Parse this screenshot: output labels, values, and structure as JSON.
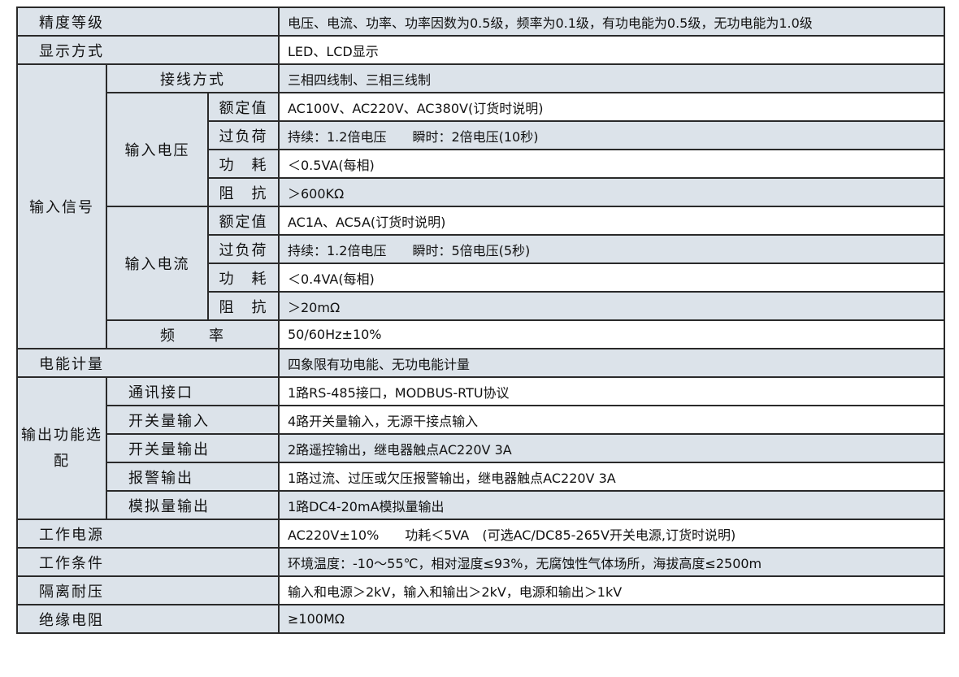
{
  "colors": {
    "label_bg": "#dce3ea",
    "border": "#2a2a2a"
  },
  "rows": {
    "accuracy": {
      "label": "精度等级",
      "value": "电压、电流、功率、功率因数为0.5级，频率为0.1级，有功电能为0.5级，无功电能为1.0级"
    },
    "display": {
      "label": "显示方式",
      "value": "LED、LCD显示"
    },
    "input": {
      "label": "输入信号",
      "wiring": {
        "label": "接线方式",
        "value": "三相四线制、三相三线制"
      },
      "voltage": {
        "label": "输入电压",
        "rated": {
          "label": "额定值",
          "value": "AC100V、AC220V、AC380V(订货时说明)"
        },
        "overload": {
          "label": "过负荷",
          "value": "持续：1.2倍电压　　瞬时：2倍电压(10秒)"
        },
        "power": {
          "label": "功　耗",
          "value": "＜0.5VA(每相)"
        },
        "impedance": {
          "label": "阻　抗",
          "value": "＞600KΩ"
        }
      },
      "current": {
        "label": "输入电流",
        "rated": {
          "label": "额定值",
          "value": "AC1A、AC5A(订货时说明)"
        },
        "overload": {
          "label": "过负荷",
          "value": "持续：1.2倍电压　　瞬时：5倍电压(5秒)"
        },
        "power": {
          "label": "功　耗",
          "value": "＜0.4VA(每相)"
        },
        "impedance": {
          "label": "阻　抗",
          "value": "＞20mΩ"
        }
      },
      "frequency": {
        "label": "频　　率",
        "value": "50/60Hz±10%"
      }
    },
    "energy": {
      "label": "电能计量",
      "value": "四象限有功电能、无功电能计量"
    },
    "output": {
      "label": "输出功能选配",
      "comm": {
        "label": "通讯接口",
        "value": "1路RS-485接口，MODBUS-RTU协议"
      },
      "di": {
        "label": "开关量输入",
        "value": "4路开关量输入，无源干接点输入"
      },
      "do": {
        "label": "开关量输出",
        "value": "2路遥控输出，继电器触点AC220V 3A"
      },
      "alarm": {
        "label": "报警输出",
        "value": "1路过流、过压或欠压报警输出，继电器触点AC220V 3A"
      },
      "analog": {
        "label": "模拟量输出",
        "value": "1路DC4-20mA模拟量输出"
      }
    },
    "supply": {
      "label": "工作电源",
      "value": "AC220V±10%　　功耗＜5VA　(可选AC/DC85-265V开关电源,订货时说明)"
    },
    "conditions": {
      "label": "工作条件",
      "value": "环境温度：-10～55℃，相对湿度≤93%，无腐蚀性气体场所，海拔高度≤2500m"
    },
    "isolation": {
      "label": "隔离耐压",
      "value": "输入和电源＞2kV，输入和输出＞2kV，电源和输出＞1kV"
    },
    "insulation": {
      "label": "绝缘电阻",
      "value": "≥100MΩ"
    }
  }
}
